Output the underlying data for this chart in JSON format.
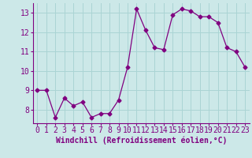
{
  "x": [
    0,
    1,
    2,
    3,
    4,
    5,
    6,
    7,
    8,
    9,
    10,
    11,
    12,
    13,
    14,
    15,
    16,
    17,
    18,
    19,
    20,
    21,
    22,
    23
  ],
  "y": [
    9.0,
    9.0,
    7.6,
    8.6,
    8.2,
    8.4,
    7.6,
    7.8,
    7.8,
    8.5,
    10.2,
    13.2,
    12.1,
    11.2,
    11.1,
    12.9,
    13.2,
    13.1,
    12.8,
    12.8,
    12.5,
    11.2,
    11.0,
    10.2
  ],
  "line_color": "#800080",
  "marker": "D",
  "marker_size": 2.5,
  "bg_color": "#cce8e8",
  "grid_color": "#aad4d4",
  "xlabel": "Windchill (Refroidissement éolien,°C)",
  "xlabel_fontsize": 7,
  "tick_fontsize": 7,
  "ylim": [
    7.3,
    13.5
  ],
  "xlim": [
    -0.5,
    23.5
  ],
  "yticks": [
    8,
    9,
    10,
    11,
    12,
    13
  ],
  "xticks": [
    0,
    1,
    2,
    3,
    4,
    5,
    6,
    7,
    8,
    9,
    10,
    11,
    12,
    13,
    14,
    15,
    16,
    17,
    18,
    19,
    20,
    21,
    22,
    23
  ]
}
